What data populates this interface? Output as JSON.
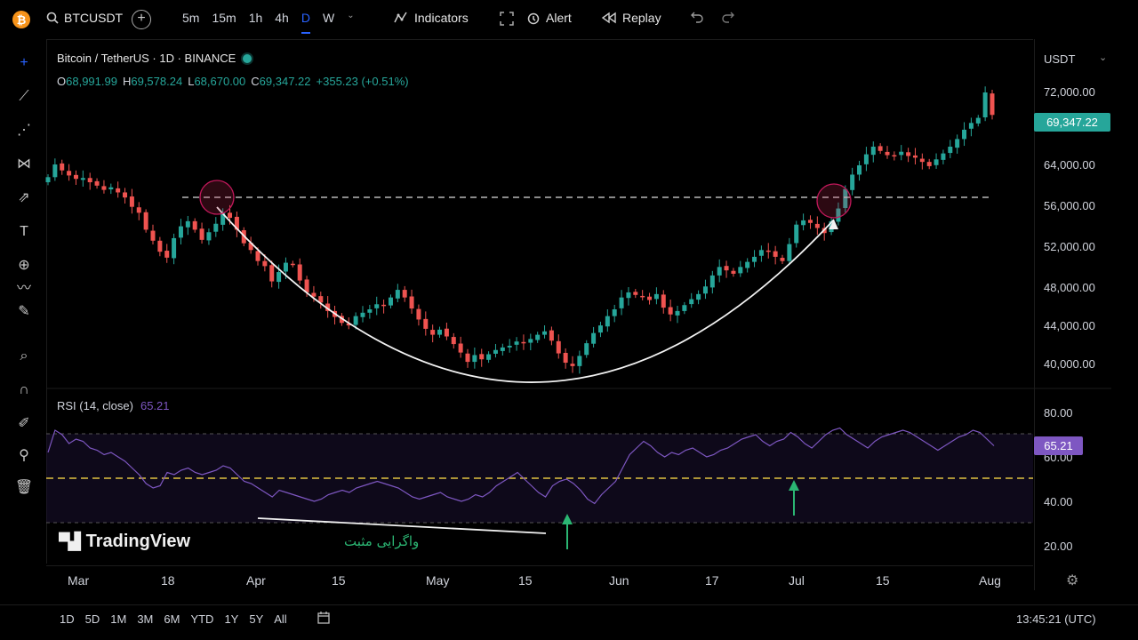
{
  "app": {
    "symbol": "BTCUSDT",
    "coin_glyph": "₿",
    "intervals": [
      "5m",
      "15m",
      "1h",
      "4h",
      "D",
      "W"
    ],
    "active_interval": "D",
    "indicators_label": "Indicators",
    "alert_label": "Alert",
    "replay_label": "Replay"
  },
  "legend": {
    "title": "Bitcoin / TetherUS · 1D · BINANCE",
    "o_key": "O",
    "o_val": "68,991.99",
    "h_key": "H",
    "h_val": "69,578.24",
    "l_key": "L",
    "l_val": "68,670.00",
    "c_key": "C",
    "c_val": "69,347.22",
    "change": "+355.23 (+0.51%)"
  },
  "rsi": {
    "label": "RSI (14, close)",
    "value": "65.21"
  },
  "price_axis": {
    "currency": "USDT",
    "labels": [
      "72,000.00",
      "64,000.00",
      "56,000.00",
      "52,000.00",
      "48,000.00",
      "44,000.00",
      "40,000.00"
    ],
    "last_price": "69,347.22"
  },
  "rsi_axis": {
    "labels": [
      "80.00",
      "60.00",
      "40.00",
      "20.00"
    ],
    "last_value": "65.21"
  },
  "time_axis": {
    "labels": [
      "Mar",
      "18",
      "Apr",
      "15",
      "May",
      "15",
      "Jun",
      "17",
      "Jul",
      "15",
      "Aug"
    ]
  },
  "annotations": {
    "divergence_text": "واگرایی مثبت",
    "watermark": "TradingView"
  },
  "bottom": {
    "ranges": [
      "1D",
      "5D",
      "1M",
      "3M",
      "6M",
      "YTD",
      "1Y",
      "5Y",
      "All"
    ],
    "clock": "13:45:21 (UTC)"
  },
  "colors": {
    "up": "#26a69a",
    "down": "#ef5350",
    "rsi": "#7e57c2",
    "accent": "#2962ff",
    "annotation_green": "#2bb673",
    "midline": "#e0c341"
  },
  "chart_data": {
    "type": "candlestick",
    "price_ylim": [
      38000,
      76000
    ],
    "rsi_ylim": [
      20,
      80
    ],
    "resistance_level": 57000,
    "closes": [
      62000,
      63500,
      62800,
      62200,
      61800,
      61900,
      61400,
      61000,
      60500,
      60800,
      60200,
      59600,
      58500,
      57800,
      55800,
      54500,
      53200,
      52500,
      54800,
      56200,
      56800,
      55800,
      54600,
      55500,
      56500,
      57800,
      57200,
      55800,
      54200,
      53400,
      52100,
      51500,
      49700,
      50800,
      51900,
      51700,
      49800,
      48400,
      47900,
      47200,
      46200,
      45500,
      44800,
      44500,
      45600,
      46000,
      46400,
      47000,
      46800,
      47800,
      48700,
      47800,
      46500,
      45200,
      44100,
      43400,
      44000,
      43200,
      42300,
      41300,
      40200,
      41000,
      40500,
      41100,
      41600,
      41900,
      42100,
      42600,
      42400,
      42900,
      43400,
      43800,
      42700,
      41200,
      40100,
      39700,
      40900,
      42400,
      43600,
      44500,
      45600,
      46400,
      47800,
      48400,
      48100,
      47900,
      47500,
      48200,
      46600,
      45800,
      46200,
      46900,
      47600,
      48200,
      49100,
      50400,
      51400,
      51000,
      50600,
      51400,
      52000,
      52600,
      53400,
      53200,
      52600,
      52100,
      54100,
      56400,
      56900,
      56600,
      56000,
      55400,
      56800,
      58300,
      60600,
      62300,
      63400,
      64700,
      65600,
      65100,
      64600,
      64500,
      65000,
      64500,
      64300,
      63800,
      63300,
      64100,
      64800,
      65600,
      66500,
      67600,
      68400,
      69000,
      72000,
      69347
    ],
    "rsi_values": [
      62,
      72,
      70,
      66,
      68,
      67,
      64,
      63,
      61,
      62,
      60,
      58,
      55,
      52,
      48,
      46,
      47,
      53,
      52,
      54,
      55,
      53,
      52,
      53,
      54,
      56,
      55,
      52,
      49,
      48,
      46,
      44,
      42,
      45,
      44,
      43,
      42,
      41,
      40,
      41,
      43,
      44,
      45,
      44,
      46,
      47,
      48,
      49,
      48,
      47,
      46,
      44,
      42,
      41,
      42,
      43,
      44,
      42,
      41,
      40,
      41,
      43,
      42,
      44,
      47,
      49,
      51,
      53,
      50,
      47,
      44,
      42,
      47,
      49,
      50,
      48,
      45,
      41,
      39,
      43,
      46,
      49,
      55,
      61,
      64,
      67,
      65,
      62,
      60,
      62,
      61,
      63,
      64,
      62,
      60,
      61,
      63,
      64,
      66,
      68,
      69,
      70,
      67,
      65,
      67,
      68,
      71,
      69,
      66,
      64,
      67,
      70,
      72,
      73,
      70,
      68,
      66,
      64,
      67,
      69,
      70,
      71,
      72,
      71,
      69,
      67,
      65,
      63,
      65,
      67,
      69,
      70,
      72,
      71,
      68,
      65
    ]
  }
}
